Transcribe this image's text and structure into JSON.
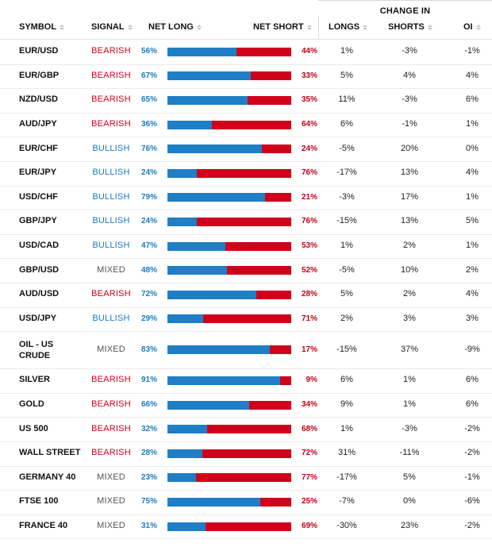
{
  "header": {
    "group_title": "CHANGE IN",
    "columns": {
      "symbol": "SYMBOL",
      "signal": "SIGNAL",
      "net_long": "NET LONG",
      "net_short": "NET SHORT",
      "longs": "LONGS",
      "shorts": "SHORTS",
      "oi": "OI"
    }
  },
  "colors": {
    "bearish": "#d0021b",
    "bullish": "#1b7bc4",
    "mixed": "#555555",
    "long_bar": "#1f7ec5",
    "short_bar": "#d0021b"
  },
  "rows": [
    {
      "symbol": "EUR/USD",
      "signal": "BEARISH",
      "net_long": "56%",
      "net_short": "44%",
      "long_frac": 0.56,
      "longs": "1%",
      "shorts": "-3%",
      "oi": "-1%"
    },
    {
      "symbol": "EUR/GBP",
      "signal": "BEARISH",
      "net_long": "67%",
      "net_short": "33%",
      "long_frac": 0.67,
      "longs": "5%",
      "shorts": "4%",
      "oi": "4%"
    },
    {
      "symbol": "NZD/USD",
      "signal": "BEARISH",
      "net_long": "65%",
      "net_short": "35%",
      "long_frac": 0.65,
      "longs": "11%",
      "shorts": "-3%",
      "oi": "6%"
    },
    {
      "symbol": "AUD/JPY",
      "signal": "BEARISH",
      "net_long": "36%",
      "net_short": "64%",
      "long_frac": 0.36,
      "longs": "6%",
      "shorts": "-1%",
      "oi": "1%"
    },
    {
      "symbol": "EUR/CHF",
      "signal": "BULLISH",
      "net_long": "76%",
      "net_short": "24%",
      "long_frac": 0.76,
      "longs": "-5%",
      "shorts": "20%",
      "oi": "0%"
    },
    {
      "symbol": "EUR/JPY",
      "signal": "BULLISH",
      "net_long": "24%",
      "net_short": "76%",
      "long_frac": 0.24,
      "longs": "-17%",
      "shorts": "13%",
      "oi": "4%"
    },
    {
      "symbol": "USD/CHF",
      "signal": "BULLISH",
      "net_long": "79%",
      "net_short": "21%",
      "long_frac": 0.79,
      "longs": "-3%",
      "shorts": "17%",
      "oi": "1%"
    },
    {
      "symbol": "GBP/JPY",
      "signal": "BULLISH",
      "net_long": "24%",
      "net_short": "76%",
      "long_frac": 0.24,
      "longs": "-15%",
      "shorts": "13%",
      "oi": "5%"
    },
    {
      "symbol": "USD/CAD",
      "signal": "BULLISH",
      "net_long": "47%",
      "net_short": "53%",
      "long_frac": 0.47,
      "longs": "1%",
      "shorts": "2%",
      "oi": "1%"
    },
    {
      "symbol": "GBP/USD",
      "signal": "MIXED",
      "net_long": "48%",
      "net_short": "52%",
      "long_frac": 0.48,
      "longs": "-5%",
      "shorts": "10%",
      "oi": "2%"
    },
    {
      "symbol": "AUD/USD",
      "signal": "BEARISH",
      "net_long": "72%",
      "net_short": "28%",
      "long_frac": 0.72,
      "longs": "5%",
      "shorts": "2%",
      "oi": "4%"
    },
    {
      "symbol": "USD/JPY",
      "signal": "BULLISH",
      "net_long": "29%",
      "net_short": "71%",
      "long_frac": 0.29,
      "longs": "2%",
      "shorts": "3%",
      "oi": "3%"
    },
    {
      "symbol": "OIL - US CRUDE",
      "signal": "MIXED",
      "net_long": "83%",
      "net_short": "17%",
      "long_frac": 0.83,
      "longs": "-15%",
      "shorts": "37%",
      "oi": "-9%"
    },
    {
      "symbol": "SILVER",
      "signal": "BEARISH",
      "net_long": "91%",
      "net_short": "9%",
      "long_frac": 0.91,
      "longs": "6%",
      "shorts": "1%",
      "oi": "6%"
    },
    {
      "symbol": "GOLD",
      "signal": "BEARISH",
      "net_long": "66%",
      "net_short": "34%",
      "long_frac": 0.66,
      "longs": "9%",
      "shorts": "1%",
      "oi": "6%"
    },
    {
      "symbol": "US 500",
      "signal": "BEARISH",
      "net_long": "32%",
      "net_short": "68%",
      "long_frac": 0.32,
      "longs": "1%",
      "shorts": "-3%",
      "oi": "-2%"
    },
    {
      "symbol": "WALL STREET",
      "signal": "BEARISH",
      "net_long": "28%",
      "net_short": "72%",
      "long_frac": 0.28,
      "longs": "31%",
      "shorts": "-11%",
      "oi": "-2%"
    },
    {
      "symbol": "GERMANY 40",
      "signal": "MIXED",
      "net_long": "23%",
      "net_short": "77%",
      "long_frac": 0.23,
      "longs": "-17%",
      "shorts": "5%",
      "oi": "-1%"
    },
    {
      "symbol": "FTSE 100",
      "signal": "MIXED",
      "net_long": "75%",
      "net_short": "25%",
      "long_frac": 0.75,
      "longs": "-7%",
      "shorts": "0%",
      "oi": "-6%"
    },
    {
      "symbol": "FRANCE 40",
      "signal": "MIXED",
      "net_long": "31%",
      "net_short": "69%",
      "long_frac": 0.31,
      "longs": "-30%",
      "shorts": "23%",
      "oi": "-2%"
    }
  ]
}
